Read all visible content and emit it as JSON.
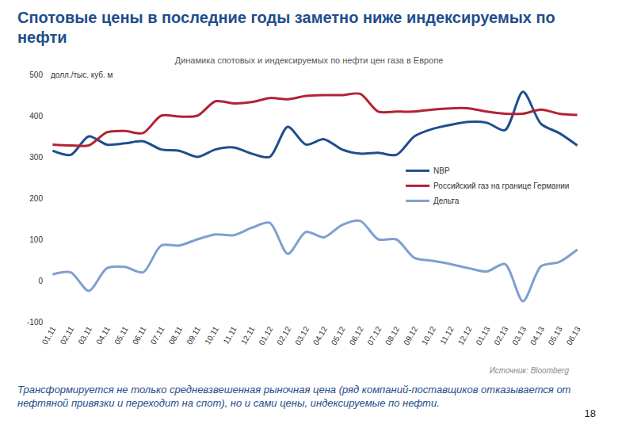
{
  "header": {
    "title": "Спотовые цены в последние годы заметно ниже индексируемых по нефти"
  },
  "chart_data": {
    "type": "line",
    "title": "Динамика спотовых и индексируемых по нефти цен газа в Европе",
    "y_label": "долл./тыс. куб. м",
    "categories": [
      "01.11",
      "02.11",
      "03.11",
      "04.11",
      "05.11",
      "06.11",
      "07.11",
      "08.11",
      "09.11",
      "10.11",
      "11.11",
      "12.11",
      "01.12",
      "02.12",
      "03.12",
      "04.12",
      "05.12",
      "06.12",
      "07.12",
      "08.12",
      "09.12",
      "10.12",
      "11.12",
      "12.12",
      "01.13",
      "02.13",
      "03.13",
      "04.13",
      "05.13",
      "06.13"
    ],
    "series": [
      {
        "name": "NBP",
        "color": "#1f4e8c",
        "values": [
          315,
          305,
          350,
          330,
          333,
          338,
          318,
          315,
          300,
          318,
          323,
          308,
          300,
          373,
          330,
          343,
          318,
          308,
          310,
          305,
          350,
          368,
          378,
          385,
          383,
          365,
          458,
          380,
          358,
          328
        ]
      },
      {
        "name": "Российский газ на границе Германии",
        "color": "#b22234",
        "values": [
          330,
          328,
          328,
          360,
          363,
          358,
          400,
          398,
          400,
          435,
          430,
          433,
          443,
          440,
          448,
          450,
          450,
          453,
          410,
          410,
          410,
          415,
          418,
          418,
          410,
          405,
          405,
          415,
          405,
          402
        ]
      },
      {
        "name": "Дельта",
        "color": "#7f9fd0",
        "values": [
          15,
          20,
          -25,
          30,
          33,
          20,
          85,
          85,
          100,
          112,
          110,
          128,
          140,
          65,
          118,
          105,
          135,
          145,
          100,
          100,
          55,
          48,
          40,
          30,
          22,
          40,
          -50,
          35,
          45,
          75
        ]
      }
    ],
    "ylim": [
      -100,
      500
    ],
    "yticks": [
      -100,
      0,
      100,
      200,
      300,
      400,
      500
    ],
    "grid": false,
    "legend": "right",
    "line_style": "smooth",
    "source": "Источник: Bloomberg"
  },
  "footer": {
    "caption": "Трансформируется не только средневзвешенная рыночная цена (ряд компаний-поставщиков отказывается от нефтяной привязки и переходит на спот), но и сами цены, индексируемые по нефти.",
    "page_number": 18
  }
}
